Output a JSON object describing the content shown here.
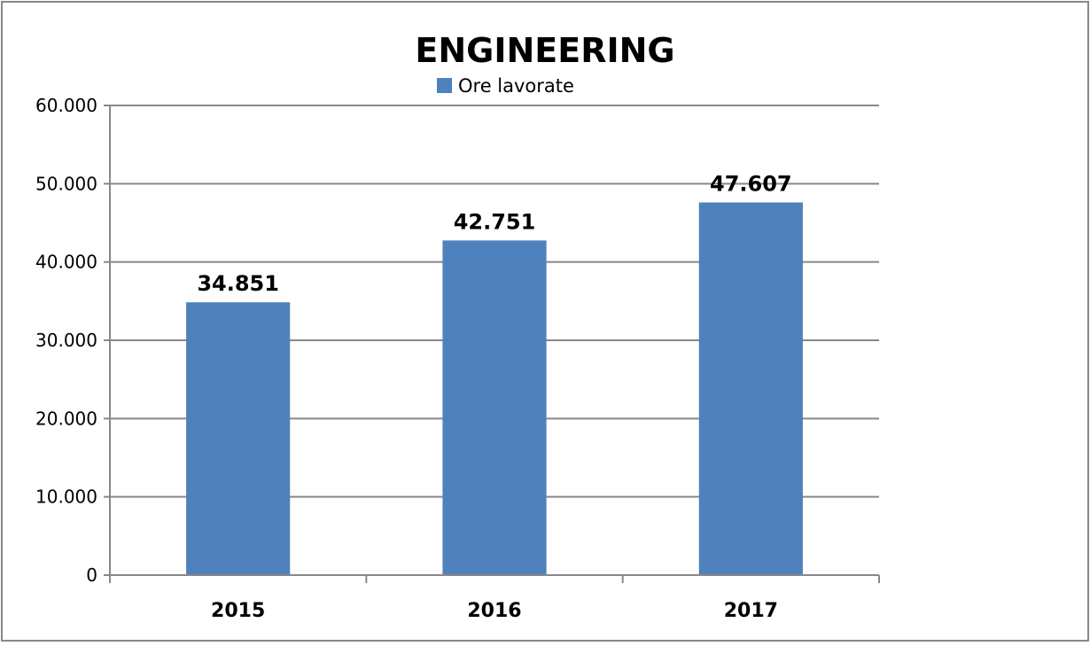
{
  "chart_data": {
    "type": "bar",
    "title": "ENGINEERING",
    "xlabel": "",
    "ylabel": "",
    "categories": [
      "2015",
      "2016",
      "2017"
    ],
    "series": [
      {
        "name": "Ore lavorate",
        "values": [
          34851,
          42751,
          47607
        ],
        "labels": [
          "34.851",
          "42.751",
          "47.607"
        ],
        "color": "#4F81BD"
      }
    ],
    "ylim": [
      0,
      60000
    ],
    "yticks": [
      0,
      10000,
      20000,
      30000,
      40000,
      50000,
      60000
    ],
    "ytick_labels": [
      "0",
      "10.000",
      "20.000",
      "30.000",
      "40.000",
      "50.000",
      "60.000"
    ],
    "grid": true,
    "legend": "top-center"
  },
  "colors": {
    "bar": "#4F81BD",
    "grid": "#888888",
    "axis": "#888888",
    "frame": "#888888"
  }
}
